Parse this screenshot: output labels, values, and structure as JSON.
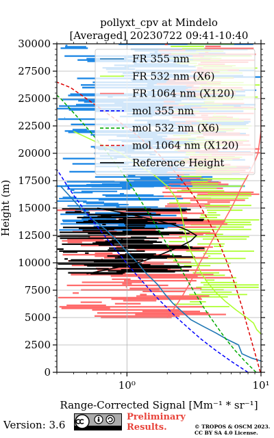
{
  "chart_data": {
    "type": "line",
    "title": "pollyxt_cpv at Mindelo",
    "subtitle": "[Averaged] 20230722 09:41-10:40",
    "xlabel": "Range-Corrected Signal [Mm⁻¹ * sr⁻¹]",
    "ylabel": "Height (m)",
    "xscale": "log",
    "xlim": [
      0.3,
      10
    ],
    "ylim": [
      0,
      30000
    ],
    "x_ticks": [
      1,
      10
    ],
    "x_tick_labels": [
      "10⁰",
      "10¹"
    ],
    "y_ticks": [
      0,
      2500,
      5000,
      7500,
      10000,
      12500,
      15000,
      17500,
      20000,
      22500,
      25000,
      27500,
      30000
    ],
    "y_tick_labels": [
      "0",
      "2500",
      "5000",
      "7500",
      "10000",
      "12500",
      "15000",
      "17500",
      "20000",
      "22500",
      "25000",
      "27500",
      "30000"
    ],
    "grid": true,
    "legend_position": "top-right",
    "series": [
      {
        "name": "FR 355 nm",
        "color": "#1f77b4",
        "style": "solid",
        "points": [
          [
            10.2,
            1000
          ],
          [
            8.5,
            1300
          ],
          [
            7.2,
            1700
          ],
          [
            6.8,
            2500
          ],
          [
            5.6,
            3000
          ],
          [
            4.6,
            3600
          ],
          [
            3.7,
            4200
          ],
          [
            3.0,
            4800
          ],
          [
            2.6,
            5500
          ],
          [
            2.2,
            6300
          ],
          [
            1.9,
            7200
          ],
          [
            1.7,
            8000
          ],
          [
            1.4,
            9000
          ],
          [
            1.2,
            10000
          ],
          [
            1.0,
            11000
          ],
          [
            0.85,
            12000
          ],
          [
            0.7,
            13000
          ],
          [
            0.55,
            14000
          ],
          [
            0.45,
            15000
          ],
          [
            0.38,
            16000
          ],
          [
            0.32,
            17000
          ]
        ]
      },
      {
        "name": "FR 532 nm (X6)",
        "color": "#adff2f",
        "style": "solid",
        "points": [
          [
            10.0,
            3500
          ],
          [
            9.3,
            3900
          ],
          [
            8.8,
            4500
          ],
          [
            7.8,
            5000
          ],
          [
            6.5,
            5700
          ],
          [
            5.4,
            6500
          ],
          [
            4.6,
            7300
          ],
          [
            4.0,
            8200
          ],
          [
            3.6,
            9000
          ],
          [
            3.3,
            10000
          ],
          [
            3.0,
            11000
          ],
          [
            2.8,
            12000
          ],
          [
            2.7,
            13000
          ],
          [
            2.6,
            14000
          ],
          [
            2.5,
            15000
          ],
          [
            2.3,
            16000
          ],
          [
            2.0,
            17000
          ],
          [
            1.6,
            18000
          ],
          [
            1.2,
            19000
          ],
          [
            0.9,
            20000
          ],
          [
            0.6,
            21000
          ],
          [
            0.4,
            22000
          ]
        ]
      },
      {
        "name": "FR 1064 nm (X120)",
        "color": "#ff6b6b",
        "style": "solid",
        "points": [
          [
            2.0,
            5000
          ],
          [
            2.3,
            6000
          ],
          [
            2.6,
            7000
          ],
          [
            2.9,
            8000
          ],
          [
            3.2,
            9000
          ],
          [
            3.5,
            10000
          ],
          [
            3.9,
            11000
          ],
          [
            4.3,
            12000
          ],
          [
            4.8,
            13000
          ],
          [
            5.4,
            14000
          ],
          [
            6.0,
            15000
          ],
          [
            6.6,
            16000
          ],
          [
            7.2,
            17000
          ],
          [
            8.0,
            18000
          ],
          [
            8.8,
            19000
          ],
          [
            9.5,
            20000
          ],
          [
            10.0,
            22000
          ],
          [
            10.0,
            26000
          ]
        ]
      },
      {
        "name": "mol 355 nm",
        "color": "#0000ff",
        "style": "dashed",
        "points": [
          [
            8.0,
            0
          ],
          [
            6.0,
            1000
          ],
          [
            4.6,
            2000
          ],
          [
            3.6,
            3000
          ],
          [
            2.9,
            4000
          ],
          [
            2.35,
            5000
          ],
          [
            1.95,
            6000
          ],
          [
            1.62,
            7000
          ],
          [
            1.37,
            8000
          ],
          [
            1.16,
            9000
          ],
          [
            0.99,
            10000
          ],
          [
            0.85,
            11000
          ],
          [
            0.73,
            12000
          ],
          [
            0.63,
            13000
          ],
          [
            0.54,
            14000
          ],
          [
            0.47,
            15000
          ],
          [
            0.41,
            16000
          ],
          [
            0.36,
            17000
          ],
          [
            0.32,
            18000
          ],
          [
            0.3,
            18500
          ]
        ]
      },
      {
        "name": "mol 532 nm (X6)",
        "color": "#00aa00",
        "style": "dashed",
        "points": [
          [
            9.2,
            0
          ],
          [
            7.6,
            1000
          ],
          [
            6.4,
            2000
          ],
          [
            5.5,
            3000
          ],
          [
            4.8,
            4000
          ],
          [
            4.2,
            5000
          ],
          [
            3.7,
            6000
          ],
          [
            3.3,
            7000
          ],
          [
            2.95,
            8000
          ],
          [
            2.65,
            9000
          ],
          [
            2.38,
            10000
          ],
          [
            2.14,
            11000
          ],
          [
            1.92,
            12000
          ],
          [
            1.72,
            13000
          ],
          [
            1.54,
            14000
          ],
          [
            1.37,
            15000
          ],
          [
            1.22,
            16000
          ],
          [
            1.08,
            17000
          ],
          [
            0.95,
            18000
          ],
          [
            0.83,
            19000
          ],
          [
            0.72,
            20000
          ],
          [
            0.62,
            21000
          ],
          [
            0.53,
            22000
          ],
          [
            0.45,
            23000
          ],
          [
            0.38,
            24000
          ],
          [
            0.32,
            25000
          ],
          [
            0.3,
            25300
          ]
        ]
      },
      {
        "name": "mol 1064 nm (X120)",
        "color": "#dd0000",
        "style": "dashed",
        "points": [
          [
            9.9,
            0
          ],
          [
            8.9,
            2000
          ],
          [
            8.0,
            4000
          ],
          [
            7.2,
            6000
          ],
          [
            6.4,
            8000
          ],
          [
            5.6,
            10000
          ],
          [
            4.8,
            12000
          ],
          [
            4.0,
            14000
          ],
          [
            3.2,
            16000
          ],
          [
            2.4,
            18000
          ],
          [
            1.7,
            20000
          ],
          [
            1.1,
            22000
          ],
          [
            0.65,
            24000
          ],
          [
            0.38,
            26000
          ],
          [
            0.3,
            26500
          ]
        ]
      },
      {
        "name": "Reference Height",
        "color": "#000000",
        "style": "solid",
        "points": [
          [
            0.5,
            9000
          ],
          [
            0.8,
            9500
          ],
          [
            1.2,
            10000
          ],
          [
            1.6,
            10500
          ],
          [
            2.0,
            11000
          ],
          [
            2.5,
            11500
          ],
          [
            3.0,
            12000
          ],
          [
            3.3,
            12500
          ],
          [
            2.8,
            13000
          ],
          [
            2.2,
            13500
          ],
          [
            1.5,
            14000
          ],
          [
            1.0,
            14500
          ],
          [
            0.6,
            15000
          ]
        ]
      }
    ]
  },
  "footer": {
    "version": "Version: 3.6",
    "preliminary_line1": "Preliminary",
    "preliminary_line2": "Results.",
    "copyright_line1": "© TROPOS & OSCM 2023.",
    "copyright_line2": "CC BY SA 4.0 License."
  }
}
